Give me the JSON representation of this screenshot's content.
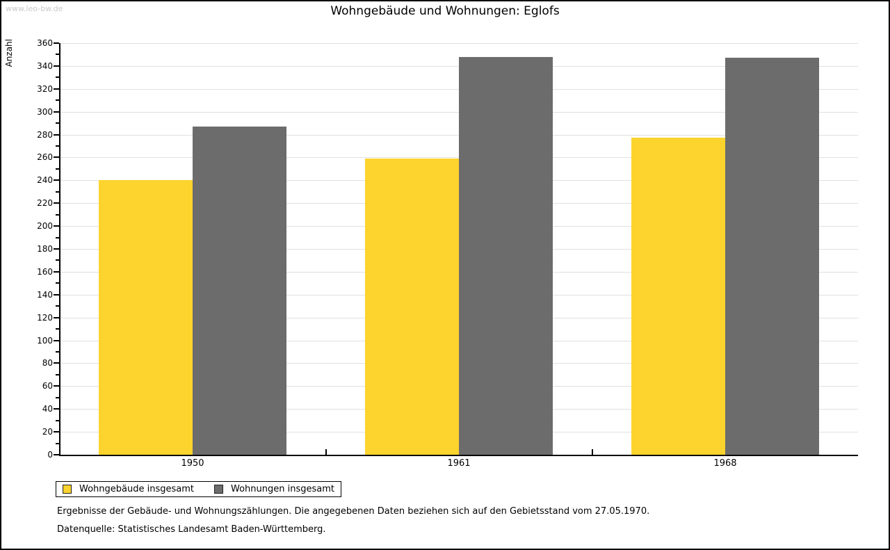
{
  "watermark": "www.leo-bw.de",
  "title": "Wohngebäude und Wohnungen: Eglofs",
  "chart_data": {
    "type": "bar",
    "title": "Wohngebäude und Wohnungen: Eglofs",
    "ylabel": "Anzahl",
    "xlabel": "",
    "categories": [
      "1950",
      "1961",
      "1968"
    ],
    "series": [
      {
        "name": "Wohngebäude insgesamt",
        "color": "#fdd32e",
        "values": [
          240,
          259,
          277
        ]
      },
      {
        "name": "Wohnungen insgesamt",
        "color": "#6c6c6c",
        "values": [
          287,
          348,
          347
        ]
      }
    ],
    "ylim": [
      0,
      360
    ],
    "ytick_step": 20,
    "minor_tick_step": 10,
    "grid": true,
    "legend_position": "bottom-left"
  },
  "footnotes": [
    "Ergebnisse der Gebäude- und Wohnungszählungen. Die angegebenen Daten beziehen sich auf den Gebietsstand vom 27.05.1970.",
    "Datenquelle: Statistisches Landesamt Baden-Württemberg."
  ]
}
